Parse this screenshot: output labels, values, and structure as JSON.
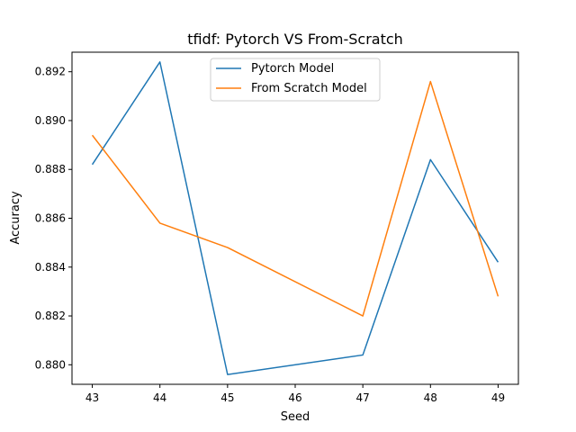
{
  "chart_data": {
    "type": "line",
    "title": "tfidf: Pytorch VS From-Scratch",
    "xlabel": "Seed",
    "ylabel": "Accuracy",
    "x": [
      43,
      44,
      45,
      47,
      48,
      49
    ],
    "xticks": [
      "43",
      "44",
      "45",
      "46",
      "47",
      "48",
      "49"
    ],
    "yticks": [
      "0.880",
      "0.882",
      "0.884",
      "0.886",
      "0.888",
      "0.890",
      "0.892"
    ],
    "xlim": [
      42.7,
      49.3
    ],
    "ylim": [
      0.8792,
      0.8928
    ],
    "grid": false,
    "legend_position": "top-center",
    "series": [
      {
        "name": "Pytorch Model",
        "color": "#1f77b4",
        "values": [
          0.8882,
          0.8924,
          0.8796,
          0.8804,
          0.8884,
          0.8842
        ]
      },
      {
        "name": "From Scratch Model",
        "color": "#ff7f0e",
        "values": [
          0.8894,
          0.8858,
          0.8848,
          0.882,
          0.8916,
          0.8828
        ]
      }
    ]
  }
}
